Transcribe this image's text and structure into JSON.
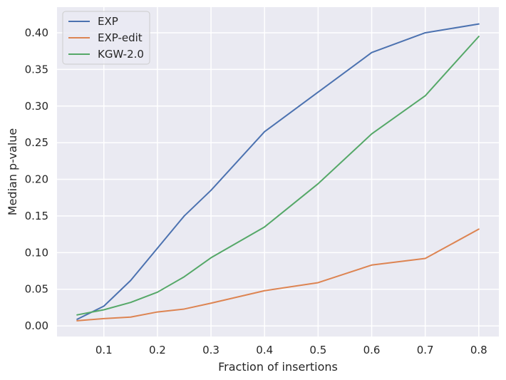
{
  "chart_data": {
    "type": "line",
    "title": "",
    "xlabel": "Fraction of insertions",
    "ylabel": "Median p-value",
    "x": [
      0.05,
      0.1,
      0.15,
      0.2,
      0.25,
      0.3,
      0.4,
      0.5,
      0.6,
      0.7,
      0.8
    ],
    "xlim": [
      0.0125,
      0.8375
    ],
    "ylim": [
      -0.0145,
      0.435
    ],
    "xticks": [
      0.1,
      0.2,
      0.3,
      0.4,
      0.5,
      0.6,
      0.7,
      0.8
    ],
    "xtick_labels": [
      "0.1",
      "0.2",
      "0.3",
      "0.4",
      "0.5",
      "0.6",
      "0.7",
      "0.8"
    ],
    "yticks": [
      0.0,
      0.05,
      0.1,
      0.15,
      0.2,
      0.25,
      0.3,
      0.35,
      0.4
    ],
    "ytick_labels": [
      "0.00",
      "0.05",
      "0.10",
      "0.15",
      "0.20",
      "0.25",
      "0.30",
      "0.35",
      "0.40"
    ],
    "grid": true,
    "background": "#eaeaf2",
    "legend_position": "top-left",
    "series": [
      {
        "name": "EXP",
        "color": "#4c72b0",
        "values": [
          0.009,
          0.027,
          0.062,
          0.106,
          0.15,
          0.185,
          0.265,
          0.319,
          0.373,
          0.4,
          0.412
        ]
      },
      {
        "name": "EXP-edit",
        "color": "#dd8452",
        "values": [
          0.007,
          0.01,
          0.012,
          0.019,
          0.023,
          0.031,
          0.048,
          0.059,
          0.083,
          0.092,
          0.132
        ]
      },
      {
        "name": "KGW-2.0",
        "color": "#55a868",
        "values": [
          0.015,
          0.022,
          0.032,
          0.046,
          0.067,
          0.093,
          0.135,
          0.194,
          0.262,
          0.314,
          0.395
        ]
      }
    ]
  }
}
